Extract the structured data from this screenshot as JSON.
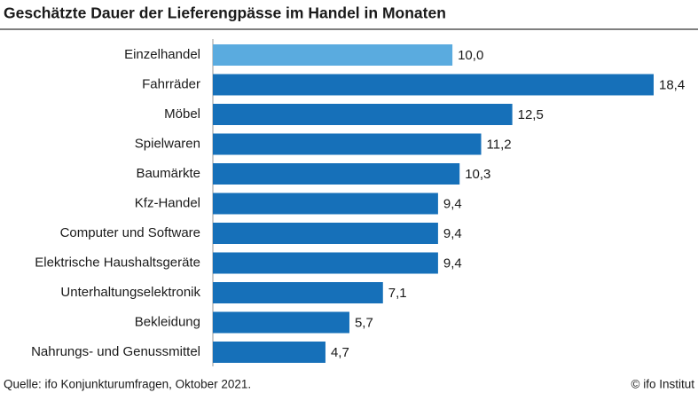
{
  "chart_data": {
    "type": "bar",
    "orientation": "horizontal",
    "title": "Geschätzte Dauer der Lieferengpässe im Handel in Monaten",
    "categories": [
      "Einzelhandel",
      "Fahrräder",
      "Möbel",
      "Spielwaren",
      "Baumärkte",
      "Kfz-Handel",
      "Computer und Software",
      "Elektrische Haushaltsgeräte",
      "Unterhaltungselektronik",
      "Bekleidung",
      "Nahrungs- und Genussmittel"
    ],
    "values": [
      10.0,
      18.4,
      12.5,
      11.2,
      10.3,
      9.4,
      9.4,
      9.4,
      7.1,
      5.7,
      4.7
    ],
    "value_labels": [
      "10,0",
      "18,4",
      "12,5",
      "11,2",
      "10,3",
      "9,4",
      "9,4",
      "9,4",
      "7,1",
      "5,7",
      "4,7"
    ],
    "colors": [
      "#5aabdf",
      "#1670b9",
      "#1670b9",
      "#1670b9",
      "#1670b9",
      "#1670b9",
      "#1670b9",
      "#1670b9",
      "#1670b9",
      "#1670b9",
      "#1670b9"
    ],
    "source": "Quelle: ifo Konjunkturumfragen, Oktober 2021.",
    "copyright": "© ifo Institut"
  }
}
